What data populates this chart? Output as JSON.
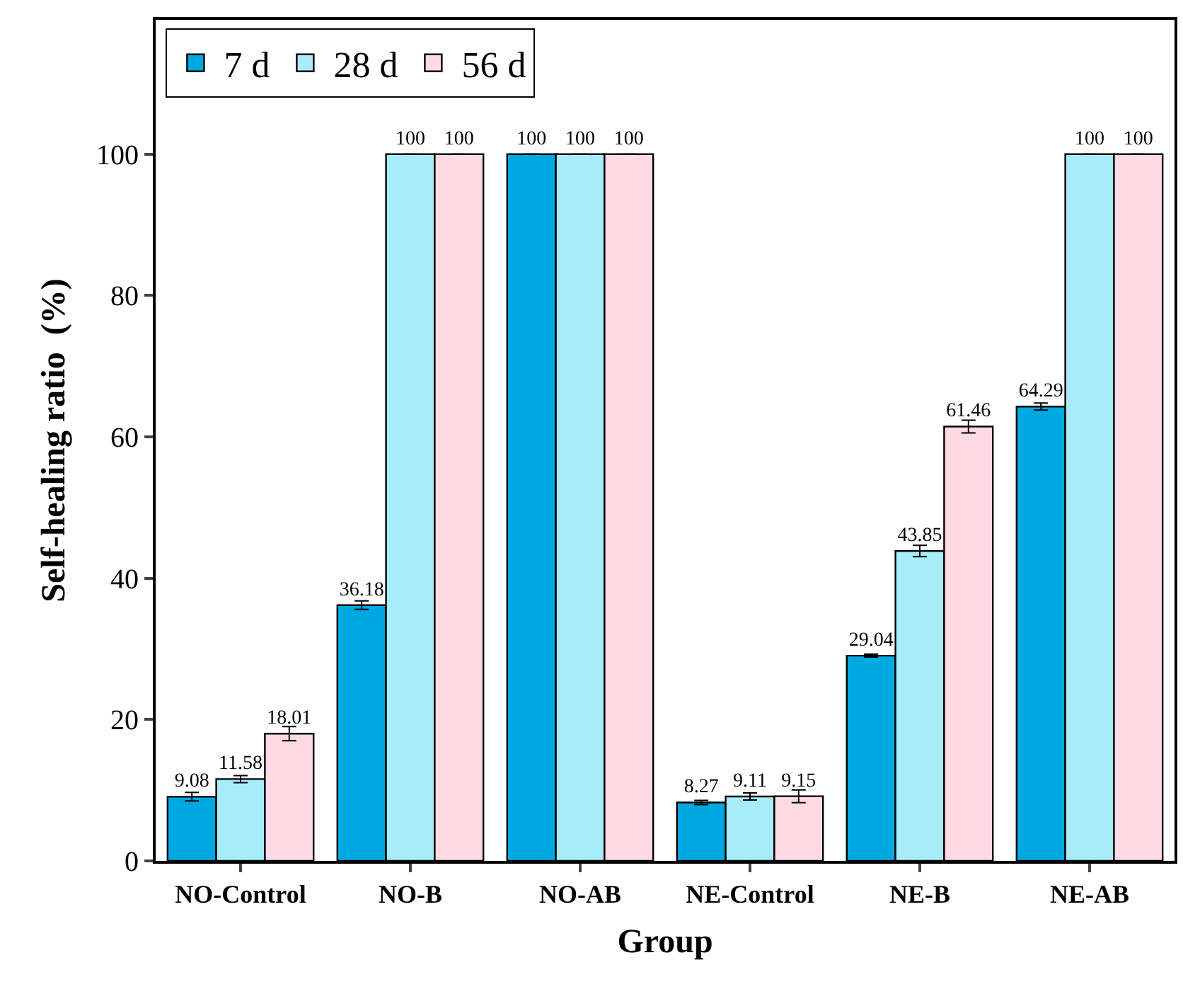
{
  "chart_data": {
    "type": "bar",
    "xlabel": "Group",
    "ylabel": "Self-healing ratio  (%)",
    "categories": [
      "NO-Control",
      "NO-B",
      "NO-AB",
      "NE-Control",
      "NE-B",
      "NE-AB"
    ],
    "series": [
      {
        "name": "7 d",
        "color": "#00a8e1",
        "values": [
          9.08,
          36.18,
          100,
          8.27,
          29.04,
          64.29
        ],
        "errors": [
          0.6,
          0.6,
          null,
          0.3,
          0.2,
          0.5
        ]
      },
      {
        "name": "28 d",
        "color": "#a8ecfa",
        "values": [
          11.58,
          100,
          100,
          9.11,
          43.85,
          100
        ],
        "errors": [
          0.5,
          null,
          null,
          0.5,
          0.8,
          null
        ]
      },
      {
        "name": "56 d",
        "color": "#ffd9e4",
        "values": [
          18.01,
          100,
          100,
          9.15,
          61.46,
          100
        ],
        "errors": [
          1.0,
          null,
          null,
          0.9,
          0.9,
          null
        ]
      }
    ],
    "data_labels": true,
    "ylim": [
      0,
      119
    ],
    "yticks": [
      0,
      20,
      40,
      60,
      80,
      100
    ],
    "legend": "top left"
  }
}
